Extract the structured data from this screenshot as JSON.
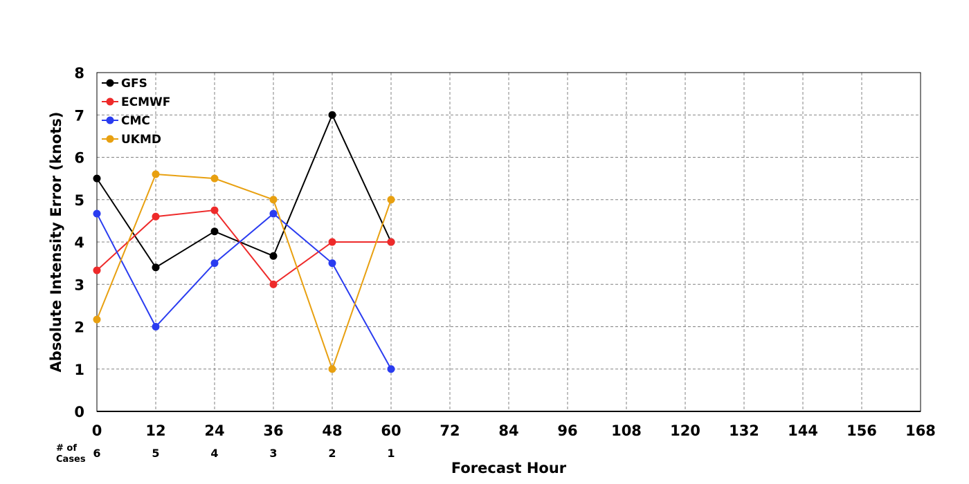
{
  "chart_data": {
    "type": "line",
    "xlabel": "Forecast Hour",
    "ylabel": "Absolute Intensity Error (knots)",
    "xlim": [
      0,
      168
    ],
    "ylim": [
      0,
      8
    ],
    "x_ticks": [
      "0",
      "12",
      "24",
      "36",
      "48",
      "60",
      "72",
      "84",
      "96",
      "108",
      "120",
      "132",
      "144",
      "156",
      "168"
    ],
    "y_ticks": [
      "0",
      "1",
      "2",
      "3",
      "4",
      "5",
      "6",
      "7",
      "8"
    ],
    "grid": true,
    "legend_position": "top-left",
    "cases_label_line1": "# of",
    "cases_label_line2": "Cases",
    "cases": [
      {
        "x": 0,
        "n": "6"
      },
      {
        "x": 12,
        "n": "5"
      },
      {
        "x": 24,
        "n": "4"
      },
      {
        "x": 36,
        "n": "3"
      },
      {
        "x": 48,
        "n": "2"
      },
      {
        "x": 60,
        "n": "1"
      }
    ],
    "series": [
      {
        "name": "GFS",
        "color": "#000000",
        "x": [
          0,
          12,
          24,
          36,
          48,
          60
        ],
        "values": [
          5.5,
          3.4,
          4.25,
          3.67,
          7.0,
          4.0
        ]
      },
      {
        "name": "ECMWF",
        "color": "#ee2a2a",
        "x": [
          0,
          12,
          24,
          36,
          48,
          60
        ],
        "values": [
          3.33,
          4.6,
          4.75,
          3.0,
          4.0,
          4.0
        ]
      },
      {
        "name": "CMC",
        "color": "#2a3cf0",
        "x": [
          0,
          12,
          24,
          36,
          48,
          60
        ],
        "values": [
          4.67,
          2.0,
          3.5,
          4.67,
          3.5,
          1.0
        ]
      },
      {
        "name": "UKMD",
        "color": "#e8a010",
        "x": [
          0,
          12,
          24,
          36,
          48,
          60
        ],
        "values": [
          2.17,
          5.6,
          5.5,
          5.0,
          1.0,
          5.0
        ]
      }
    ]
  }
}
